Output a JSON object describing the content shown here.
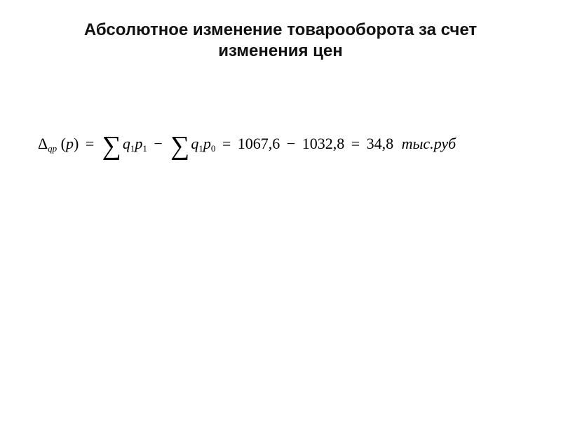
{
  "colors": {
    "background": "#ffffff",
    "text": "#000000",
    "title": "#111111"
  },
  "typography": {
    "title_font": "Arial",
    "title_weight": 700,
    "title_size_pt": 18,
    "body_font": "Times New Roman",
    "body_size_pt": 16,
    "body_style": "italic"
  },
  "title": {
    "line1": "Абсолютное изменение товарооборота за счет",
    "line2": "изменения цен"
  },
  "formula": {
    "delta": "Δ",
    "delta_sub": "qp",
    "arg_open": "(",
    "arg_var": "p",
    "arg_close": ")",
    "eq": "=",
    "sigma": "∑",
    "term1_q": "q",
    "term1_q_sub": "1",
    "term1_p": "p",
    "term1_p_sub": "1",
    "minus": "−",
    "term2_q": "q",
    "term2_q_sub": "1",
    "term2_p": "p",
    "term2_p_sub": "0",
    "val1": "1067,6",
    "val2": "1032,8",
    "result": "34,8",
    "unit": "тыс.руб"
  }
}
